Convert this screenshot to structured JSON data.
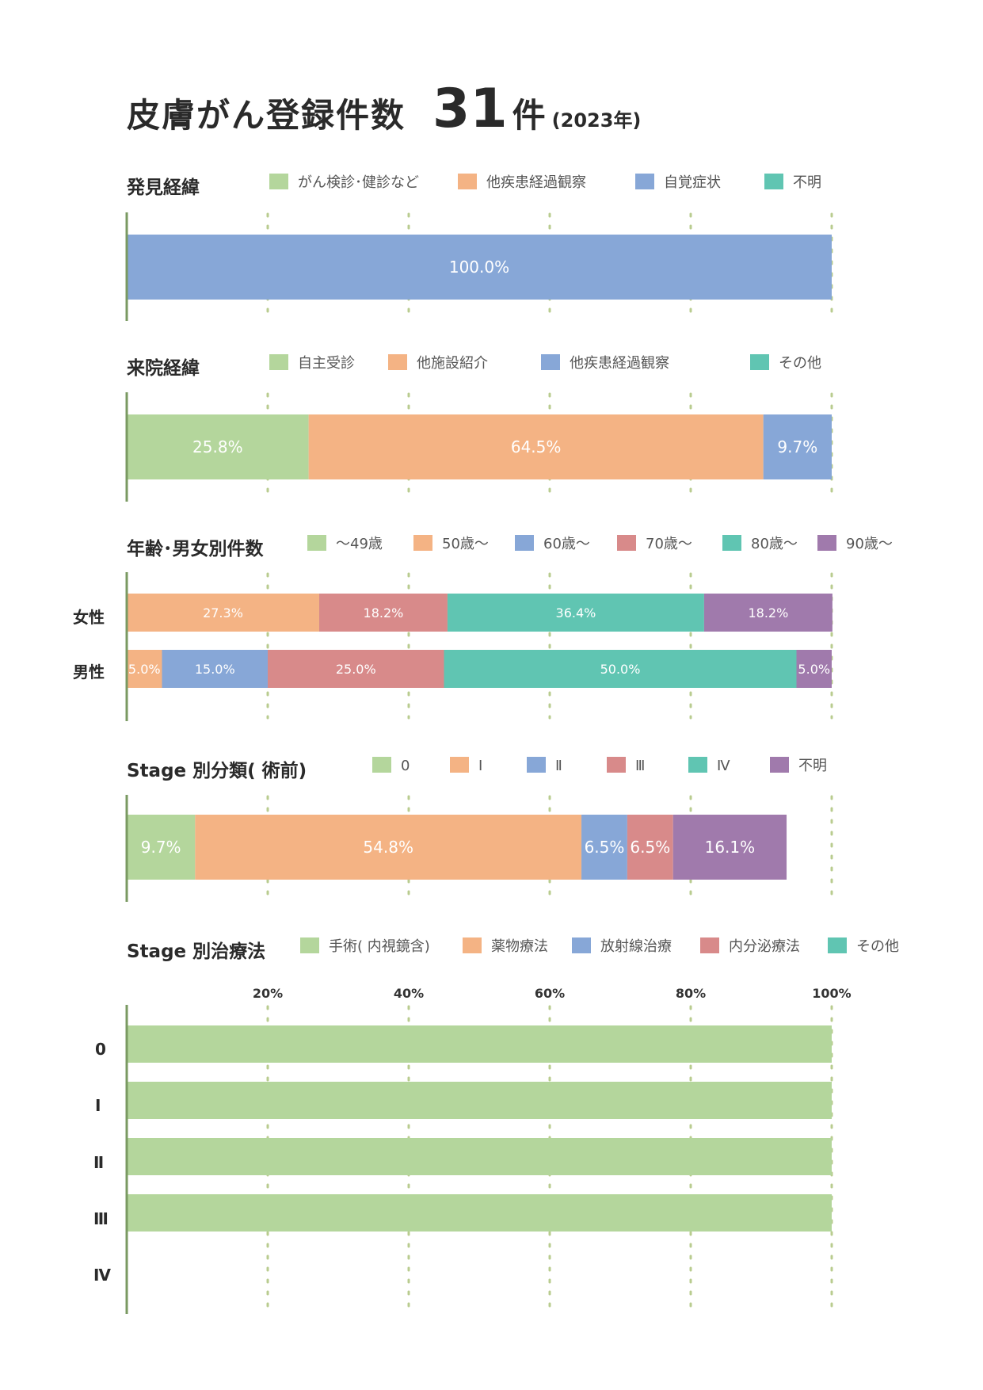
{
  "colors": {
    "green": "#b4d69c",
    "orange": "#f4b384",
    "blue": "#87a7d7",
    "red": "#d88a8a",
    "teal": "#60c5b2",
    "purple": "#a07aac",
    "axis": "#7a9a62",
    "grid": "#b9cc8f"
  },
  "header": {
    "title": "皮膚がん登録件数",
    "count": "31",
    "unit": "件",
    "year": "(2023年)"
  },
  "sections": [
    {
      "title": "発見経緯",
      "legend": [
        {
          "label": "がん検診･健診など",
          "color": "green"
        },
        {
          "label": "他疾患経過観察",
          "color": "orange"
        },
        {
          "label": "自覚症状",
          "color": "blue"
        },
        {
          "label": "不明",
          "color": "teal"
        }
      ]
    },
    {
      "title": "来院経緯",
      "legend": [
        {
          "label": "自主受診",
          "color": "green"
        },
        {
          "label": "他施設紹介",
          "color": "orange"
        },
        {
          "label": "他疾患経過観察",
          "color": "blue"
        },
        {
          "label": "その他",
          "color": "teal"
        }
      ]
    },
    {
      "title": "年齢･男女別件数",
      "legend": [
        {
          "label": "～49歳",
          "color": "green"
        },
        {
          "label": "50歳～",
          "color": "orange"
        },
        {
          "label": "60歳～",
          "color": "blue"
        },
        {
          "label": "70歳～",
          "color": "red"
        },
        {
          "label": "80歳～",
          "color": "teal"
        },
        {
          "label": "90歳～",
          "color": "purple"
        }
      ],
      "rows": [
        "女性",
        "男性"
      ]
    },
    {
      "title": "Stage 別分類( 術前)",
      "legend": [
        {
          "label": "0",
          "color": "green"
        },
        {
          "label": "Ⅰ",
          "color": "orange"
        },
        {
          "label": "Ⅱ",
          "color": "blue"
        },
        {
          "label": "Ⅲ",
          "color": "red"
        },
        {
          "label": "Ⅳ",
          "color": "teal"
        },
        {
          "label": "不明",
          "color": "purple"
        }
      ]
    },
    {
      "title": "Stage 別治療法",
      "legend": [
        {
          "label": "手術( 内視鏡含)",
          "color": "green"
        },
        {
          "label": "薬物療法",
          "color": "orange"
        },
        {
          "label": "放射線治療",
          "color": "blue"
        },
        {
          "label": "内分泌療法",
          "color": "red"
        },
        {
          "label": "その他",
          "color": "teal"
        }
      ],
      "rows": [
        "0",
        "Ⅰ",
        "Ⅱ",
        "Ⅲ",
        "Ⅳ"
      ],
      "ticks": [
        "20%",
        "40%",
        "60%",
        "80%",
        "100%"
      ]
    }
  ],
  "chart_data": [
    {
      "type": "bar",
      "stacked": true,
      "orientation": "horizontal",
      "title": "発見経緯",
      "categories": [
        ""
      ],
      "series": [
        {
          "name": "自覚症状",
          "color": "blue",
          "values": [
            100.0
          ],
          "labels": [
            "100.0%"
          ]
        }
      ],
      "xlim": [
        0,
        100
      ]
    },
    {
      "type": "bar",
      "stacked": true,
      "orientation": "horizontal",
      "title": "来院経緯",
      "categories": [
        ""
      ],
      "series": [
        {
          "name": "自主受診",
          "color": "green",
          "values": [
            25.8
          ],
          "labels": [
            "25.8%"
          ]
        },
        {
          "name": "他施設紹介",
          "color": "orange",
          "values": [
            64.5
          ],
          "labels": [
            "64.5%"
          ]
        },
        {
          "name": "他疾患経過観察",
          "color": "blue",
          "values": [
            9.7
          ],
          "labels": [
            "9.7%"
          ]
        }
      ],
      "xlim": [
        0,
        100
      ]
    },
    {
      "type": "bar",
      "stacked": true,
      "orientation": "horizontal",
      "title": "年齢･男女別件数",
      "categories": [
        "女性",
        "男性"
      ],
      "series": [
        {
          "name": "50歳～",
          "color": "orange",
          "values": [
            27.3,
            5.0
          ],
          "labels": [
            "27.3%",
            "5.0%"
          ]
        },
        {
          "name": "60歳～",
          "color": "blue",
          "values": [
            0,
            15.0
          ],
          "labels": [
            "",
            "15.0%"
          ]
        },
        {
          "name": "70歳～",
          "color": "red",
          "values": [
            18.2,
            25.0
          ],
          "labels": [
            "18.2%",
            "25.0%"
          ]
        },
        {
          "name": "80歳～",
          "color": "teal",
          "values": [
            36.4,
            50.0
          ],
          "labels": [
            "36.4%",
            "50.0%"
          ]
        },
        {
          "name": "90歳～",
          "color": "purple",
          "values": [
            18.2,
            5.0
          ],
          "labels": [
            "18.2%",
            "5.0%"
          ]
        }
      ],
      "xlim": [
        0,
        100
      ]
    },
    {
      "type": "bar",
      "stacked": true,
      "orientation": "horizontal",
      "title": "Stage 別分類( 術前)",
      "categories": [
        ""
      ],
      "series": [
        {
          "name": "0",
          "color": "green",
          "values": [
            9.7
          ],
          "labels": [
            "9.7%"
          ]
        },
        {
          "name": "Ⅰ",
          "color": "orange",
          "values": [
            54.8
          ],
          "labels": [
            "54.8%"
          ]
        },
        {
          "name": "Ⅱ",
          "color": "blue",
          "values": [
            6.5
          ],
          "labels": [
            "6.5%"
          ]
        },
        {
          "name": "Ⅲ",
          "color": "red",
          "values": [
            6.5
          ],
          "labels": [
            "6.5%"
          ]
        },
        {
          "name": "不明",
          "color": "purple",
          "values": [
            16.1
          ],
          "labels": [
            "16.1%"
          ]
        }
      ],
      "xlim": [
        0,
        100
      ]
    },
    {
      "type": "bar",
      "stacked": true,
      "orientation": "horizontal",
      "title": "Stage 別治療法",
      "categories": [
        "0",
        "Ⅰ",
        "Ⅱ",
        "Ⅲ",
        "Ⅳ"
      ],
      "series": [
        {
          "name": "手術( 内視鏡含)",
          "color": "green",
          "values": [
            100,
            100,
            100,
            100,
            0
          ],
          "labels": [
            "",
            "",
            "",
            "",
            ""
          ]
        }
      ],
      "xlim": [
        0,
        100
      ],
      "xticks": [
        20,
        40,
        60,
        80,
        100
      ]
    }
  ]
}
